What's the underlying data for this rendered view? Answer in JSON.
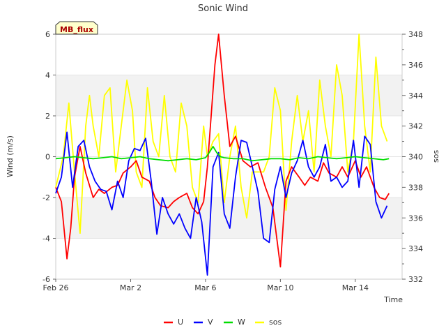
{
  "chart_data": {
    "type": "line",
    "title": "Sonic Wind",
    "badge": "MB_flux",
    "xlabel": "Time",
    "ylabel": "Wind (m/s)",
    "y2label": "sos",
    "xlim": [
      0,
      18.5
    ],
    "ylim": [
      -6,
      6
    ],
    "y2lim": [
      332,
      348
    ],
    "x_ticks": [
      {
        "value": 0,
        "label": "Feb 26"
      },
      {
        "value": 4,
        "label": "Mar 2"
      },
      {
        "value": 8,
        "label": "Mar 6"
      },
      {
        "value": 12,
        "label": "Mar 10"
      },
      {
        "value": 16,
        "label": "Mar 14"
      }
    ],
    "y_ticks": [
      -6,
      -4,
      -2,
      0,
      2,
      4,
      6
    ],
    "y2_ticks": [
      332,
      334,
      336,
      338,
      340,
      342,
      344,
      346,
      348
    ],
    "bands": [
      [
        -4,
        -2
      ],
      [
        2,
        4
      ],
      [
        6,
        6
      ]
    ],
    "series": [
      {
        "name": "U",
        "axis": "left",
        "color": "#ff0000",
        "x": [
          0,
          0.3,
          0.6,
          0.8,
          1.0,
          1.3,
          1.6,
          2.0,
          2.3,
          2.6,
          3.0,
          3.3,
          3.6,
          4.0,
          4.3,
          4.6,
          5.0,
          5.3,
          5.6,
          6.0,
          6.3,
          6.6,
          7.0,
          7.3,
          7.6,
          7.9,
          8.1,
          8.3,
          8.5,
          8.7,
          9.0,
          9.3,
          9.6,
          10.0,
          10.4,
          10.8,
          11.2,
          11.6,
          12.0,
          12.3,
          12.6,
          13.0,
          13.3,
          13.6,
          14.0,
          14.3,
          14.6,
          15.0,
          15.3,
          15.6,
          16.0,
          16.3,
          16.6,
          17.0,
          17.3,
          17.6,
          17.8
        ],
        "values": [
          -1.5,
          -2.2,
          -5.0,
          -3.5,
          -1.0,
          0.5,
          -0.8,
          -2.0,
          -1.6,
          -1.8,
          -1.5,
          -1.4,
          -0.8,
          -0.5,
          -0.2,
          -1.0,
          -1.2,
          -2.0,
          -2.4,
          -2.5,
          -2.2,
          -2.0,
          -1.8,
          -2.5,
          -2.8,
          -2.2,
          -0.5,
          2.0,
          4.5,
          6.0,
          3.0,
          0.5,
          1.0,
          -0.2,
          -0.5,
          -0.3,
          -1.5,
          -2.5,
          -5.4,
          -1.2,
          -0.5,
          -1.0,
          -1.4,
          -1.0,
          -1.2,
          -0.3,
          -0.8,
          -1.0,
          -0.5,
          -1.0,
          -0.2,
          -1.0,
          -0.5,
          -1.5,
          -2.0,
          -2.1,
          -1.8
        ]
      },
      {
        "name": "V",
        "axis": "left",
        "color": "#0000ff",
        "x": [
          0,
          0.3,
          0.6,
          0.9,
          1.2,
          1.5,
          1.8,
          2.1,
          2.4,
          2.7,
          3.0,
          3.3,
          3.6,
          3.9,
          4.2,
          4.5,
          4.8,
          5.1,
          5.4,
          5.7,
          6.0,
          6.3,
          6.6,
          6.9,
          7.2,
          7.5,
          7.8,
          8.1,
          8.4,
          8.7,
          9.0,
          9.3,
          9.6,
          9.9,
          10.2,
          10.5,
          10.8,
          11.1,
          11.4,
          11.7,
          12.0,
          12.3,
          12.6,
          12.9,
          13.2,
          13.5,
          13.8,
          14.1,
          14.4,
          14.7,
          15.0,
          15.3,
          15.6,
          15.9,
          16.2,
          16.5,
          16.8,
          17.1,
          17.4,
          17.7
        ],
        "values": [
          -1.8,
          -1.0,
          1.2,
          -1.5,
          0.5,
          0.8,
          -0.5,
          -1.2,
          -1.6,
          -1.7,
          -2.6,
          -1.2,
          -2.0,
          -0.2,
          0.4,
          0.3,
          0.9,
          -1.2,
          -3.8,
          -2.0,
          -2.8,
          -3.3,
          -2.8,
          -3.5,
          -4.0,
          -2.0,
          -3.2,
          -5.8,
          -0.5,
          0.2,
          -2.8,
          -3.5,
          -1.0,
          0.8,
          0.7,
          -0.5,
          -1.7,
          -4.0,
          -4.2,
          -1.6,
          -0.5,
          -2.0,
          -0.8,
          -0.2,
          0.8,
          -0.5,
          -1.0,
          -0.5,
          0.6,
          -1.2,
          -1.0,
          -1.5,
          -1.2,
          0.8,
          -1.5,
          1.0,
          0.6,
          -2.2,
          -3.0,
          -2.4
        ]
      },
      {
        "name": "W",
        "axis": "left",
        "color": "#00dd00",
        "x": [
          0,
          0.5,
          1.0,
          1.5,
          2.0,
          2.5,
          3.0,
          3.5,
          4.0,
          4.5,
          5.0,
          5.5,
          6.0,
          6.5,
          7.0,
          7.5,
          8.0,
          8.2,
          8.4,
          8.6,
          8.8,
          9.0,
          9.5,
          10.0,
          10.5,
          11.0,
          11.5,
          12.0,
          12.5,
          13.0,
          13.5,
          14.0,
          14.5,
          15.0,
          15.5,
          16.0,
          16.5,
          17.0,
          17.5,
          17.8
        ],
        "values": [
          -0.1,
          -0.05,
          0.0,
          -0.05,
          -0.1,
          -0.05,
          0.0,
          -0.1,
          -0.05,
          0.0,
          -0.1,
          -0.15,
          -0.2,
          -0.15,
          -0.1,
          -0.15,
          -0.05,
          0.2,
          0.5,
          0.2,
          0.0,
          -0.05,
          -0.1,
          -0.1,
          -0.2,
          -0.15,
          -0.1,
          -0.1,
          -0.15,
          -0.05,
          -0.1,
          0.0,
          -0.05,
          -0.1,
          -0.05,
          0.0,
          -0.05,
          -0.1,
          -0.15,
          -0.1
        ]
      },
      {
        "name": "sos",
        "axis": "right",
        "color": "#ffff00",
        "x": [
          0,
          0.4,
          0.7,
          1.0,
          1.3,
          1.6,
          1.8,
          2.0,
          2.3,
          2.6,
          2.9,
          3.2,
          3.5,
          3.8,
          4.1,
          4.3,
          4.6,
          4.9,
          5.2,
          5.5,
          5.8,
          6.1,
          6.4,
          6.7,
          7.0,
          7.3,
          7.6,
          7.9,
          8.1,
          8.4,
          8.7,
          9.0,
          9.3,
          9.6,
          9.9,
          10.2,
          10.5,
          10.8,
          11.1,
          11.4,
          11.7,
          12.0,
          12.3,
          12.6,
          12.9,
          13.2,
          13.5,
          13.8,
          14.1,
          14.4,
          14.7,
          15.0,
          15.3,
          15.6,
          15.9,
          16.2,
          16.5,
          16.8,
          17.1,
          17.4,
          17.7
        ],
        "values": [
          338,
          340,
          343.5,
          339,
          335,
          342,
          344,
          342,
          340,
          344,
          344.5,
          339,
          342,
          345,
          343,
          339,
          338,
          344.5,
          341,
          340,
          344,
          340,
          339,
          343.5,
          342,
          338,
          337,
          342,
          340,
          341,
          341.5,
          337,
          340,
          342,
          338,
          336,
          339,
          339,
          339,
          340,
          344.5,
          343,
          336.5,
          341,
          344,
          341,
          343,
          339,
          345,
          342,
          340,
          346,
          344,
          339,
          341,
          348,
          342,
          339,
          346.5,
          342,
          341
        ]
      }
    ]
  }
}
